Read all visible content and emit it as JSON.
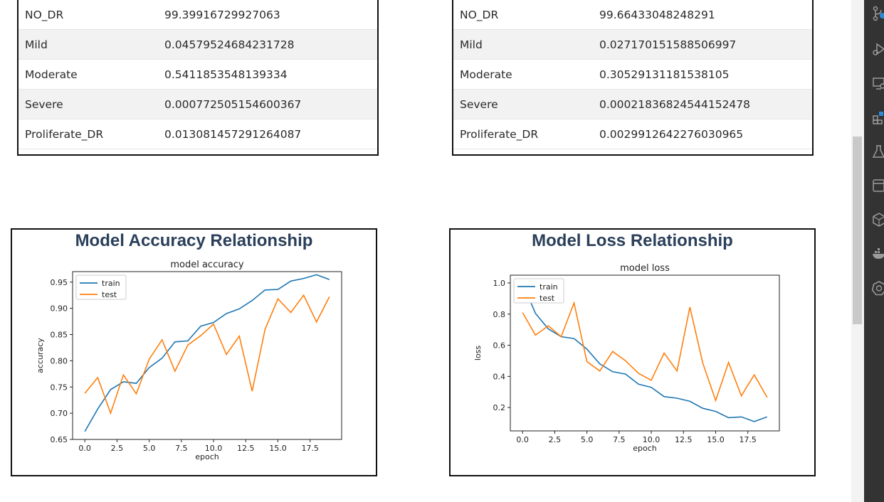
{
  "tables": [
    {
      "rows": [
        {
          "label": "NO_DR",
          "value": "99.39916729927063"
        },
        {
          "label": "Mild",
          "value": "0.04579524684231728"
        },
        {
          "label": "Moderate",
          "value": "0.5411853548139334"
        },
        {
          "label": "Severe",
          "value": "0.000772505154600367"
        },
        {
          "label": "Proliferate_DR",
          "value": "0.013081457291264087"
        }
      ]
    },
    {
      "rows": [
        {
          "label": "NO_DR",
          "value": "99.66433048248291"
        },
        {
          "label": "Mild",
          "value": "0.027170151588506997"
        },
        {
          "label": "Moderate",
          "value": "0.30529131181538105"
        },
        {
          "label": "Severe",
          "value": "0.00021836824544152478"
        },
        {
          "label": "Proliferate_DR",
          "value": "0.0029912642276030965"
        }
      ]
    }
  ],
  "cards": {
    "accuracy_title": "Model Accuracy Relationship",
    "loss_title": "Model Loss Relationship"
  },
  "chart_data": [
    {
      "type": "line",
      "title": "model accuracy",
      "xlabel": "epoch",
      "ylabel": "accuracy",
      "xlim": [
        -0.95,
        19.95
      ],
      "ylim": [
        0.65,
        0.97
      ],
      "xticks": [
        0.0,
        2.5,
        5.0,
        7.5,
        10.0,
        12.5,
        15.0,
        17.5
      ],
      "xtick_labels": [
        "0.0",
        "2.5",
        "5.0",
        "7.5",
        "10.0",
        "12.5",
        "15.0",
        "17.5"
      ],
      "yticks": [
        0.65,
        0.7,
        0.75,
        0.8,
        0.85,
        0.9,
        0.95
      ],
      "ytick_labels": [
        "0.65",
        "0.70",
        "0.75",
        "0.80",
        "0.85",
        "0.90",
        "0.95"
      ],
      "legend_position": "top-left",
      "x": [
        0,
        1,
        2,
        3,
        4,
        5,
        6,
        7,
        8,
        9,
        10,
        11,
        12,
        13,
        14,
        15,
        16,
        17,
        18,
        19
      ],
      "series": [
        {
          "name": "train",
          "color": "#1f77b4",
          "values": [
            0.665,
            0.708,
            0.745,
            0.76,
            0.757,
            0.787,
            0.805,
            0.836,
            0.838,
            0.866,
            0.873,
            0.89,
            0.899,
            0.915,
            0.935,
            0.936,
            0.952,
            0.957,
            0.964,
            0.955
          ]
        },
        {
          "name": "test",
          "color": "#ff7f0e",
          "values": [
            0.738,
            0.768,
            0.7,
            0.773,
            0.737,
            0.803,
            0.84,
            0.78,
            0.83,
            0.848,
            0.87,
            0.812,
            0.847,
            0.742,
            0.86,
            0.918,
            0.892,
            0.925,
            0.874,
            0.922
          ]
        }
      ]
    },
    {
      "type": "line",
      "title": "model loss",
      "xlabel": "epoch",
      "ylabel": "loss",
      "xlim": [
        -0.95,
        19.95
      ],
      "ylim": [
        0.05,
        1.05
      ],
      "xticks": [
        0.0,
        2.5,
        5.0,
        7.5,
        10.0,
        12.5,
        15.0,
        17.5
      ],
      "xtick_labels": [
        "0.0",
        "2.5",
        "5.0",
        "7.5",
        "10.0",
        "12.5",
        "15.0",
        "17.5"
      ],
      "yticks": [
        0.2,
        0.4,
        0.6,
        0.8,
        1.0
      ],
      "ytick_labels": [
        "0.2",
        "0.4",
        "0.6",
        "0.8",
        "1.0"
      ],
      "legend_position": "top-left",
      "x": [
        0,
        1,
        2,
        3,
        4,
        5,
        6,
        7,
        8,
        9,
        10,
        11,
        12,
        13,
        14,
        15,
        16,
        17,
        18,
        19
      ],
      "series": [
        {
          "name": "train",
          "color": "#1f77b4",
          "values": [
            1.0,
            0.805,
            0.705,
            0.655,
            0.643,
            0.575,
            0.48,
            0.43,
            0.415,
            0.35,
            0.33,
            0.27,
            0.26,
            0.24,
            0.195,
            0.175,
            0.135,
            0.14,
            0.11,
            0.14
          ]
        },
        {
          "name": "test",
          "color": "#ff7f0e",
          "values": [
            0.81,
            0.665,
            0.725,
            0.655,
            0.872,
            0.495,
            0.435,
            0.56,
            0.5,
            0.42,
            0.375,
            0.55,
            0.435,
            0.845,
            0.485,
            0.245,
            0.49,
            0.275,
            0.41,
            0.265
          ]
        }
      ]
    }
  ],
  "sidebar": {
    "icons": [
      "source-control-icon",
      "run-debug-icon",
      "remote-explorer-icon",
      "extensions-icon",
      "testing-icon",
      "notebook-icon",
      "package-icon",
      "docker-icon",
      "kubernetes-icon"
    ]
  }
}
